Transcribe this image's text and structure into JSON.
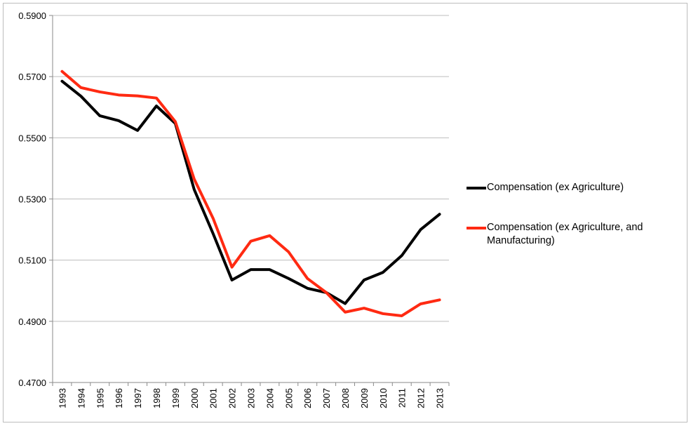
{
  "chart_data": {
    "type": "line",
    "title": "",
    "xlabel": "",
    "ylabel": "",
    "x": [
      "1993",
      "1994",
      "1995",
      "1996",
      "1997",
      "1998",
      "1999",
      "2000",
      "2001",
      "2002",
      "2003",
      "2004",
      "2005",
      "2006",
      "2007",
      "2008",
      "2009",
      "2010",
      "2011",
      "2012",
      "2013"
    ],
    "ylim": [
      0.47,
      0.59
    ],
    "yticks": [
      "0.4700",
      "0.4900",
      "0.5100",
      "0.5300",
      "0.5500",
      "0.5700",
      "0.5900"
    ],
    "grid": true,
    "legend_position": "right",
    "series": [
      {
        "name": "Compensation (ex Agriculture)",
        "color": "#000000",
        "values": [
          0.5685,
          0.5636,
          0.5572,
          0.5556,
          0.5524,
          0.5604,
          0.5547,
          0.5331,
          0.5187,
          0.5035,
          0.5069,
          0.5069,
          0.504,
          0.5008,
          0.4994,
          0.4958,
          0.5035,
          0.506,
          0.5115,
          0.52,
          0.525
        ]
      },
      {
        "name": "Compensation (ex Agriculture, and Manufacturing)",
        "color": "#ff2a12",
        "values": [
          0.5717,
          0.5664,
          0.565,
          0.564,
          0.5637,
          0.563,
          0.5553,
          0.5365,
          0.5237,
          0.5077,
          0.5162,
          0.518,
          0.5127,
          0.504,
          0.4994,
          0.493,
          0.4943,
          0.4925,
          0.4918,
          0.4957,
          0.497
        ]
      }
    ]
  }
}
